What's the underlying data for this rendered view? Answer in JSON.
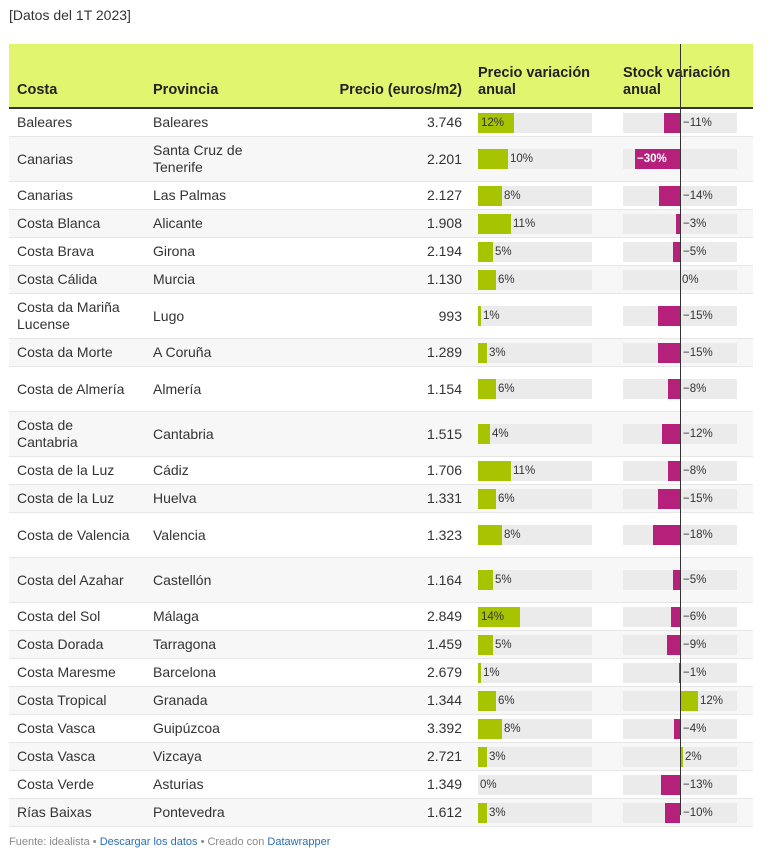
{
  "subtitle": "[Datos del 1T 2023]",
  "headers": {
    "costa": "Costa",
    "provincia": "Provincia",
    "precio": "Precio (euros/m2)",
    "precio_var": "Precio variación anual",
    "stock_var": "Stock variación anual"
  },
  "colors": {
    "precio": "#a8c400",
    "stock_pos": "#a8c400",
    "stock_neg": "#b5207a",
    "header": "#e2f56e"
  },
  "chart_data": {
    "type": "table",
    "title": "[Datos del 1T 2023]",
    "columns": [
      "Costa",
      "Provincia",
      "Precio (euros/m2)",
      "Precio variación anual",
      "Stock variación anual"
    ],
    "rows": [
      {
        "costa": "Baleares",
        "provincia": "Baleares",
        "precio": "3.746",
        "pv": 12,
        "sv": -11
      },
      {
        "costa": "Canarias",
        "provincia": "Santa Cruz de Tenerife",
        "precio": "2.201",
        "pv": 10,
        "sv": -30
      },
      {
        "costa": "Canarias",
        "provincia": "Las Palmas",
        "precio": "2.127",
        "pv": 8,
        "sv": -14
      },
      {
        "costa": "Costa Blanca",
        "provincia": "Alicante",
        "precio": "1.908",
        "pv": 11,
        "sv": -3
      },
      {
        "costa": "Costa Brava",
        "provincia": "Girona",
        "precio": "2.194",
        "pv": 5,
        "sv": -5
      },
      {
        "costa": "Costa Cálida",
        "provincia": "Murcia",
        "precio": "1.130",
        "pv": 6,
        "sv": 0
      },
      {
        "costa": "Costa da Mariña Lucense",
        "provincia": "Lugo",
        "precio": "993",
        "pv": 1,
        "sv": -15
      },
      {
        "costa": "Costa da Morte",
        "provincia": "A Coruña",
        "precio": "1.289",
        "pv": 3,
        "sv": -15
      },
      {
        "costa": "Costa de Almería",
        "provincia": "Almería",
        "precio": "1.154",
        "pv": 6,
        "sv": -8
      },
      {
        "costa": "Costa de Cantabria",
        "provincia": "Cantabria",
        "precio": "1.515",
        "pv": 4,
        "sv": -12
      },
      {
        "costa": "Costa de la Luz",
        "provincia": "Cádiz",
        "precio": "1.706",
        "pv": 11,
        "sv": -8
      },
      {
        "costa": "Costa de la Luz",
        "provincia": "Huelva",
        "precio": "1.331",
        "pv": 6,
        "sv": -15
      },
      {
        "costa": "Costa de Valencia",
        "provincia": "Valencia",
        "precio": "1.323",
        "pv": 8,
        "sv": -18
      },
      {
        "costa": "Costa del Azahar",
        "provincia": "Castellón",
        "precio": "1.164",
        "pv": 5,
        "sv": -5
      },
      {
        "costa": "Costa del Sol",
        "provincia": "Málaga",
        "precio": "2.849",
        "pv": 14,
        "sv": -6
      },
      {
        "costa": "Costa Dorada",
        "provincia": "Tarragona",
        "precio": "1.459",
        "pv": 5,
        "sv": -9
      },
      {
        "costa": "Costa Maresme",
        "provincia": "Barcelona",
        "precio": "2.679",
        "pv": 1,
        "sv": -1
      },
      {
        "costa": "Costa Tropical",
        "provincia": "Granada",
        "precio": "1.344",
        "pv": 6,
        "sv": 12
      },
      {
        "costa": "Costa Vasca",
        "provincia": "Guipúzcoa",
        "precio": "3.392",
        "pv": 8,
        "sv": -4
      },
      {
        "costa": "Costa Vasca",
        "provincia": "Vizcaya",
        "precio": "2.721",
        "pv": 3,
        "sv": 2
      },
      {
        "costa": "Costa Verde",
        "provincia": "Asturias",
        "precio": "1.349",
        "pv": 0,
        "sv": -13
      },
      {
        "costa": "Rías Baixas",
        "provincia": "Pontevedra",
        "precio": "1.612",
        "pv": 3,
        "sv": -10
      }
    ],
    "precio_var_range": [
      0,
      38
    ],
    "stock_var_range": [
      -38,
      38
    ]
  },
  "footer": {
    "source": "Fuente: idealista",
    "sep1": " • ",
    "download": "Descargar los datos",
    "sep2": " • Creado con ",
    "tool": "Datawrapper"
  }
}
